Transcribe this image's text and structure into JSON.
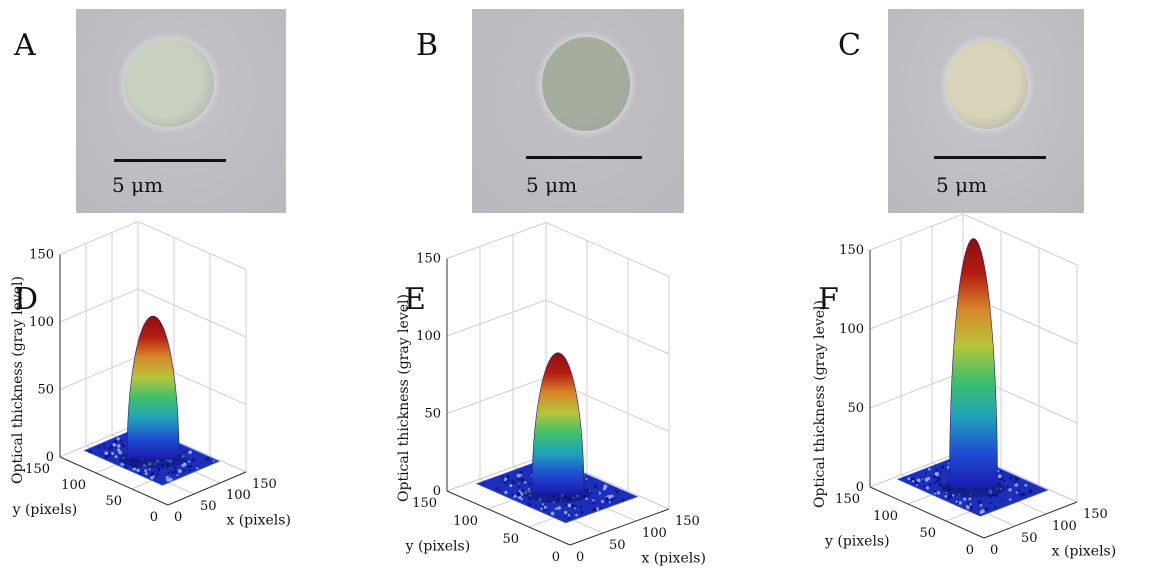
{
  "panels_top": [
    {
      "letter": "A",
      "scale_label": "5 μm",
      "cell_color": "#c9d0bf",
      "bg_color": "#c4c3c8"
    },
    {
      "letter": "B",
      "scale_label": "5 μm",
      "cell_color": "#a6ad9e",
      "bg_color": "#c1c0c4"
    },
    {
      "letter": "C",
      "scale_label": "5 μm",
      "cell_color": "#d8d4ba",
      "bg_color": "#c6c5c8"
    }
  ],
  "chart_data": [
    {
      "type": "surface3d",
      "letter": "D",
      "xlabel": "x (pixels)",
      "ylabel": "y (pixels)",
      "zlabel": "Optical thickness (gray level)",
      "x_ticks": [
        "0",
        "50",
        "100",
        "150"
      ],
      "y_ticks": [
        "0",
        "50",
        "100",
        "150"
      ],
      "z_ticks": [
        "0",
        "50",
        "100",
        "150"
      ],
      "xlim": [
        0,
        150
      ],
      "ylim": [
        0,
        150
      ],
      "zlim": [
        0,
        150
      ],
      "peak_value": 110,
      "colormap": [
        "#1a1ab0",
        "#1e4fd0",
        "#1fa3b8",
        "#3fbf6a",
        "#b8c43a",
        "#d8862a",
        "#b51c12",
        "#8a0e0e"
      ]
    },
    {
      "type": "surface3d",
      "letter": "E",
      "xlabel": "x (pixels)",
      "ylabel": "y (pixels)",
      "zlabel": "Optical thickness (gray level)",
      "x_ticks": [
        "0",
        "50",
        "100",
        "150"
      ],
      "y_ticks": [
        "0",
        "50",
        "100",
        "150"
      ],
      "z_ticks": [
        "0",
        "50",
        "100",
        "150"
      ],
      "xlim": [
        0,
        150
      ],
      "ylim": [
        0,
        150
      ],
      "zlim": [
        0,
        150
      ],
      "peak_value": 95,
      "colormap": [
        "#1a1ab0",
        "#1e4fd0",
        "#1fa3b8",
        "#3fbf6a",
        "#b8c43a",
        "#d8862a",
        "#b51c12",
        "#8a0e0e"
      ]
    },
    {
      "type": "surface3d",
      "letter": "F",
      "xlabel": "x (pixels)",
      "ylabel": "y (pixels)",
      "zlabel": "Optical thickness (gray level)",
      "x_ticks": [
        "0",
        "50",
        "100",
        "150"
      ],
      "y_ticks": [
        "0",
        "50",
        "100",
        "150"
      ],
      "z_ticks": [
        "0",
        "50",
        "100",
        "150"
      ],
      "xlim": [
        0,
        150
      ],
      "ylim": [
        0,
        150
      ],
      "zlim": [
        0,
        150
      ],
      "peak_value": 162,
      "colormap": [
        "#1a1ab0",
        "#1e4fd0",
        "#1fa3b8",
        "#3fbf6a",
        "#b8c43a",
        "#d8862a",
        "#b51c12",
        "#8a0e0e"
      ]
    }
  ]
}
